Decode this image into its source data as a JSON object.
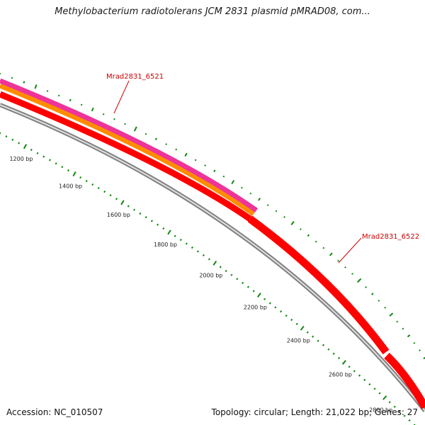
{
  "title": "Methylobacterium radiotolerans JCM 2831 plasmid pMRAD08, com...",
  "footer": {
    "accession": "Accession: NC_010507",
    "summary": "Topology: circular; Length: 21,022 bp; Genes: 27"
  },
  "map": {
    "ticks": [
      {
        "bp": 1200,
        "label": "1200 bp"
      },
      {
        "bp": 1400,
        "label": "1400 bp"
      },
      {
        "bp": 1600,
        "label": "1600 bp"
      },
      {
        "bp": 1800,
        "label": "1800 bp"
      },
      {
        "bp": 2000,
        "label": "2000 bp"
      },
      {
        "bp": 2200,
        "label": "2200 bp"
      },
      {
        "bp": 2400,
        "label": "2400 bp"
      },
      {
        "bp": 2600,
        "label": "2600 bp"
      },
      {
        "bp": 2800,
        "label": "2800 bp"
      }
    ],
    "genes": [
      {
        "name": "Mrad2831_6521",
        "color": "#ff0000"
      },
      {
        "name": "Mrad2831_6522",
        "color": "#ff0000"
      }
    ],
    "colors": {
      "backbone": "#808080",
      "cds": "#ff0000",
      "orange_track": "#ff8c00",
      "pink_track": "#ee3399",
      "gc_ticks": "#118811",
      "label": "#cc0000"
    }
  }
}
